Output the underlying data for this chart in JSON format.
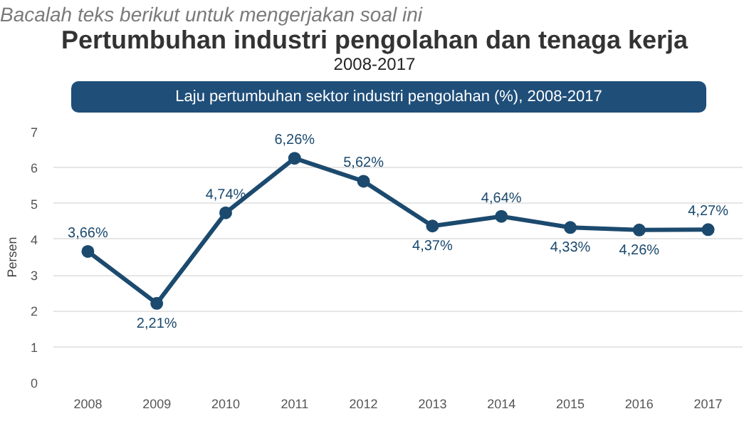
{
  "chart_data": {
    "type": "line",
    "title": "Pertumbuhan industri pengolahan dan tenaga kerja",
    "subtitle": "2008-2017",
    "annotations": [
      "Bacalah teks berikut untuk mengerjakan soal ini",
      "Laju pertumbuhan sektor industri pengolahan (%), 2008-2017"
    ],
    "ylabel": "Persen",
    "categories": [
      "2008",
      "2009",
      "2010",
      "2011",
      "2012",
      "2013",
      "2014",
      "2015",
      "2016",
      "2017"
    ],
    "series": [
      {
        "color": "#1c4a6e",
        "values": [
          3.66,
          2.21,
          4.74,
          6.26,
          5.62,
          4.37,
          4.64,
          4.33,
          4.26,
          4.27
        ],
        "value_labels": [
          "3,66%",
          "2,21%",
          "4,74%",
          "6,26%",
          "5,62%",
          "4,37%",
          "4,64%",
          "4,33%",
          "4,26%",
          "4,27%"
        ]
      }
    ],
    "ylim": [
      0,
      7
    ],
    "yticks": [
      0,
      1,
      2,
      3,
      4,
      5,
      6,
      7
    ],
    "grid": "y",
    "marker": "circle",
    "line_style": "solid"
  }
}
